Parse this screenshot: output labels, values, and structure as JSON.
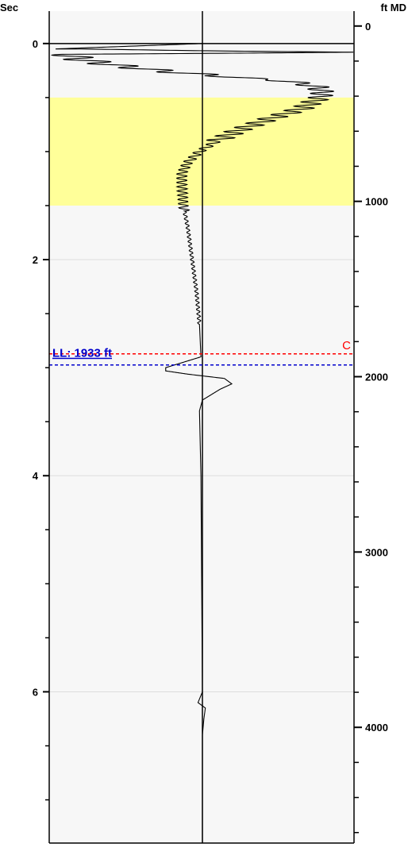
{
  "chart_data": {
    "type": "line",
    "title": "",
    "left_axis": {
      "label": "Sec",
      "ylim": [
        -0.3,
        7.4
      ],
      "major_ticks": [
        0,
        2,
        4,
        6
      ],
      "tick_labels": [
        "0",
        "2",
        "4",
        "6"
      ],
      "minor_step": 0.5
    },
    "right_axis": {
      "label": "ft MD",
      "depth_range": [
        -85,
        4660
      ],
      "major_ticks": [
        0,
        1000,
        2000,
        3000,
        4000
      ],
      "tick_labels": [
        "0",
        "1000",
        "2000",
        "3000",
        "4000"
      ],
      "minor_step": 200
    },
    "grid": true,
    "gridlines_sec": [
      2,
      4,
      6
    ],
    "highlight_band": {
      "from_sec": 0.5,
      "to_sec": 1.5,
      "color": "#ffff99"
    },
    "center_reference_line": true,
    "markers": [
      {
        "label": "C",
        "depth_ft": 1870,
        "color": "#ff0000",
        "style": "dashed"
      },
      {
        "label": "LL: 1933 ft",
        "depth_ft": 1933,
        "color": "#0000cc",
        "style": "dashed"
      }
    ],
    "series": [
      {
        "label_text": "",
        "color": "#000000",
        "points_sec_amp": [
          [
            0.0,
            0.0
          ],
          [
            0.05,
            -1.0
          ],
          [
            0.08,
            1.0
          ],
          [
            0.1,
            -0.92
          ],
          [
            0.15,
            -0.82
          ],
          [
            0.2,
            -0.6
          ],
          [
            0.25,
            -0.3
          ],
          [
            0.3,
            0.1
          ],
          [
            0.35,
            0.6
          ],
          [
            0.4,
            0.78
          ],
          [
            0.45,
            0.82
          ],
          [
            0.5,
            0.8
          ],
          [
            0.6,
            0.68
          ],
          [
            0.7,
            0.45
          ],
          [
            0.8,
            0.25
          ],
          [
            0.9,
            0.1
          ],
          [
            1.0,
            -0.02
          ],
          [
            1.1,
            -0.1
          ],
          [
            1.2,
            -0.14
          ],
          [
            1.3,
            -0.14
          ],
          [
            1.5,
            -0.13
          ],
          [
            1.7,
            -0.1
          ],
          [
            2.0,
            -0.07
          ],
          [
            2.3,
            -0.04
          ],
          [
            2.6,
            -0.02
          ],
          [
            2.9,
            -0.01
          ],
          [
            3.0,
            -0.25
          ],
          [
            3.03,
            -0.25
          ],
          [
            3.06,
            -0.1
          ],
          [
            3.1,
            0.15
          ],
          [
            3.15,
            0.2
          ],
          [
            3.2,
            0.12
          ],
          [
            3.3,
            0.0
          ],
          [
            3.4,
            -0.02
          ],
          [
            4.0,
            -0.01
          ],
          [
            6.0,
            0.0
          ],
          [
            6.1,
            -0.03
          ],
          [
            6.15,
            0.02
          ],
          [
            6.25,
            0.01
          ],
          [
            6.4,
            0.0
          ],
          [
            7.4,
            0.0
          ]
        ]
      }
    ]
  }
}
